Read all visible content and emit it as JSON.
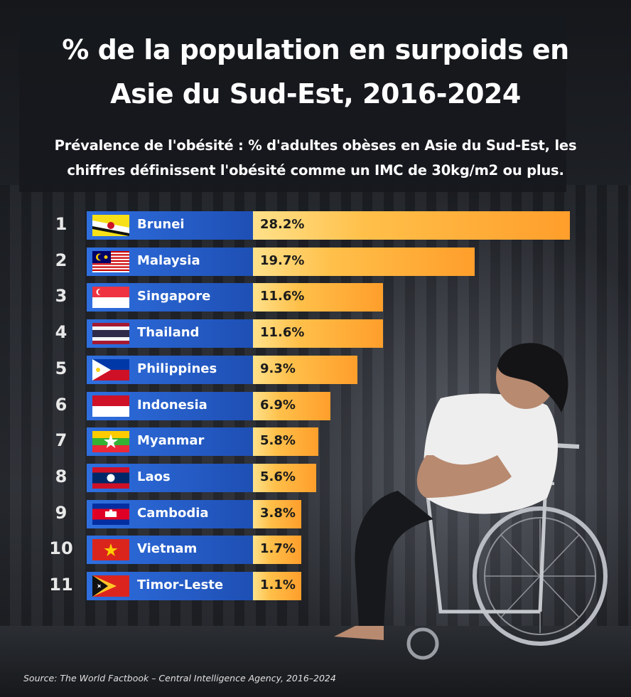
{
  "chart_data": {
    "type": "bar",
    "orientation": "horizontal",
    "title_lines": [
      "% de la population en surpoids en",
      "Asie du Sud-Est, 2016-2024"
    ],
    "subtitle_lines": [
      "Prévalence de l'obésité : % d'adultes obèses en Asie du Sud-Est, les",
      "chiffres définissent l'obésité comme un IMC de 30kg/m2 ou plus."
    ],
    "categories": [
      "Brunei",
      "Malaysia",
      "Singapore",
      "Thailand",
      "Philippines",
      "Indonesia",
      "Myanmar",
      "Laos",
      "Cambodia",
      "Vietnam",
      "Timor-Leste"
    ],
    "ranks": [
      "1",
      "2",
      "3",
      "4",
      "5",
      "6",
      "7",
      "8",
      "9",
      "10",
      "11"
    ],
    "values": [
      28.2,
      19.7,
      11.6,
      11.6,
      9.3,
      6.9,
      5.8,
      5.6,
      3.8,
      1.7,
      1.1
    ],
    "value_labels": [
      "28.2%",
      "19.7%",
      "11.6%",
      "11.6%",
      "9.3%",
      "6.9%",
      "5.8%",
      "5.6%",
      "3.8%",
      "1.7%",
      "1.1%"
    ],
    "flags": [
      "brunei-flag",
      "malaysia-flag",
      "singapore-flag",
      "thailand-flag",
      "philippines-flag",
      "indonesia-flag",
      "myanmar-flag",
      "laos-flag",
      "cambodia-flag",
      "vietnam-flag",
      "timor-leste-flag"
    ],
    "source": "Source: The World Factbook – Central Intelligence Agency, 2016–2024",
    "colors": {
      "label_box": "#2a64d4",
      "bar_start": "#ffe18a",
      "bar_end": "#ff9e2b"
    }
  }
}
